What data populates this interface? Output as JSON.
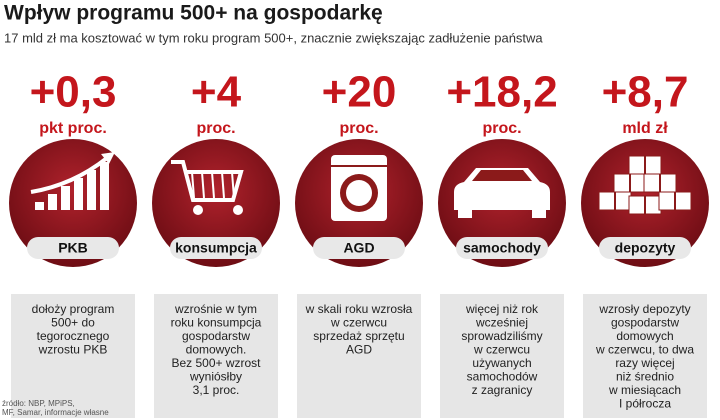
{
  "header": {
    "title": "Wpływ programu 500+ na gospodarkę",
    "subtitle": "17 mld zł ma kosztować w tym roku program 500+, znacznie zwiększając zadłużenie państwa"
  },
  "items": [
    {
      "value": "+0,3",
      "unit": "pkt proc.",
      "label": "PKB",
      "description": [
        "dołoży program",
        "500+ do",
        "tegorocznego",
        "wzrostu PKB"
      ]
    },
    {
      "value": "+4",
      "unit": "proc.",
      "label": "konsumpcja",
      "description": [
        "wzrośnie w tym",
        "roku konsumpcja",
        "gospodarstw",
        "domowych.",
        "Bez 500+ wzrost",
        "wyniósłby",
        "3,1 proc."
      ]
    },
    {
      "value": "+20",
      "unit": "proc.",
      "label": "AGD",
      "description": [
        "w skali roku wzrosła",
        "w czerwcu",
        "sprzedaż sprzętu",
        "AGD"
      ]
    },
    {
      "value": "+18,2",
      "unit": "proc.",
      "label": "samochody",
      "description": [
        "więcej niż rok",
        "wcześniej",
        "sprowadziliśmy",
        "w czerwcu",
        "używanych",
        "samochodów",
        "z zagranicy"
      ]
    },
    {
      "value": "+8,7",
      "unit": "mld zł",
      "label": "depozyty",
      "description": [
        "wzrosły depozyty",
        "gospodarstw",
        "domowych",
        "w czerwcu, to dwa",
        "razy więcej",
        "niż średnio",
        "w miesiącach",
        "I półrocza"
      ]
    }
  ],
  "footer": {
    "source": [
      "źródło: NBP, MPiPS,",
      "MF, Samar, informacje własne"
    ]
  }
}
